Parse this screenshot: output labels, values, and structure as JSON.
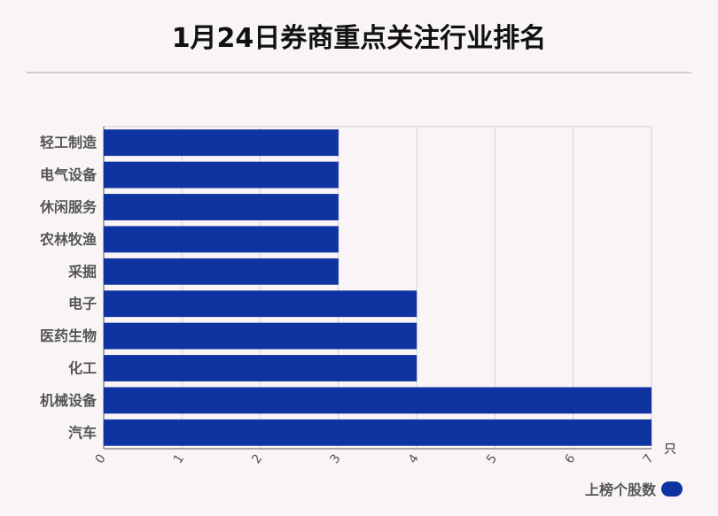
{
  "title": "1月24日券商重点关注行业排名",
  "colors": {
    "bar": "#0f33a0",
    "grid": "#d4d4d4",
    "axis": "#555555",
    "label": "#555555"
  },
  "chart_data": {
    "type": "bar",
    "orientation": "horizontal",
    "title": "1月24日券商重点关注行业排名",
    "categories": [
      "轻工制造",
      "电气设备",
      "休闲服务",
      "农林牧渔",
      "采掘",
      "电子",
      "医药生物",
      "化工",
      "机械设备",
      "汽车"
    ],
    "series": [
      {
        "name": "上榜个股数",
        "values": [
          3,
          3,
          3,
          3,
          3,
          4,
          4,
          4,
          7,
          7
        ]
      }
    ],
    "xlim": [
      0,
      7
    ],
    "xticks": [
      "0",
      "1",
      "2",
      "3",
      "4",
      "5",
      "6",
      "7"
    ],
    "xunit": "只",
    "grid": true,
    "legend_position": "bottom-right"
  }
}
